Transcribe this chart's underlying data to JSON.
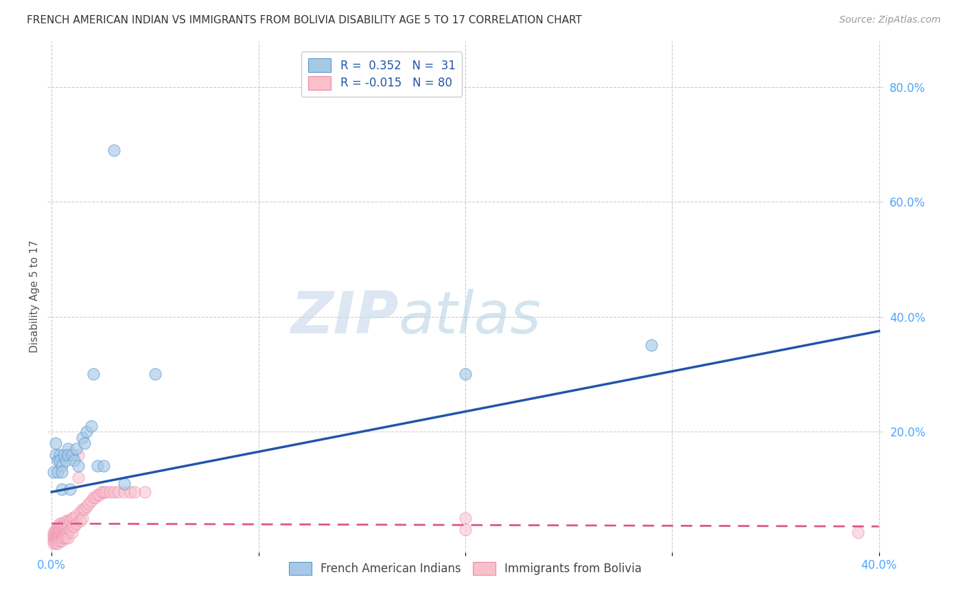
{
  "title": "FRENCH AMERICAN INDIAN VS IMMIGRANTS FROM BOLIVIA DISABILITY AGE 5 TO 17 CORRELATION CHART",
  "source": "Source: ZipAtlas.com",
  "xlabel": "",
  "ylabel": "Disability Age 5 to 17",
  "xlim": [
    -0.002,
    0.402
  ],
  "ylim": [
    -0.01,
    0.88
  ],
  "xticks_show": [
    0.0,
    0.4
  ],
  "xticks_grid": [
    0.0,
    0.1,
    0.2,
    0.3,
    0.4
  ],
  "yticks_right": [
    0.2,
    0.4,
    0.6,
    0.8
  ],
  "blue_R": 0.352,
  "blue_N": 31,
  "pink_R": -0.015,
  "pink_N": 80,
  "blue_color": "#a8c8e8",
  "blue_edge_color": "#5599cc",
  "blue_line_color": "#2255aa",
  "pink_color": "#f9c0cc",
  "pink_edge_color": "#e888aa",
  "pink_line_color": "#dd5588",
  "axis_tick_color": "#4da6ff",
  "title_color": "#333333",
  "background_color": "#ffffff",
  "grid_color": "#cccccc",
  "watermark_zip": "ZIP",
  "watermark_atlas": "atlas",
  "legend_label_blue": "French American Indians",
  "legend_label_pink": "Immigrants from Bolivia",
  "blue_scatter_x": [
    0.001,
    0.002,
    0.002,
    0.003,
    0.003,
    0.004,
    0.004,
    0.005,
    0.005,
    0.005,
    0.006,
    0.007,
    0.008,
    0.008,
    0.009,
    0.01,
    0.011,
    0.012,
    0.013,
    0.015,
    0.016,
    0.017,
    0.019,
    0.022,
    0.025,
    0.03,
    0.035,
    0.2,
    0.29,
    0.02,
    0.05
  ],
  "blue_scatter_y": [
    0.13,
    0.18,
    0.16,
    0.15,
    0.13,
    0.16,
    0.15,
    0.14,
    0.13,
    0.1,
    0.16,
    0.15,
    0.17,
    0.16,
    0.1,
    0.16,
    0.15,
    0.17,
    0.14,
    0.19,
    0.18,
    0.2,
    0.21,
    0.14,
    0.14,
    0.69,
    0.11,
    0.3,
    0.35,
    0.3,
    0.3
  ],
  "pink_scatter_x": [
    0.001,
    0.001,
    0.001,
    0.001,
    0.001,
    0.002,
    0.002,
    0.002,
    0.002,
    0.002,
    0.002,
    0.003,
    0.003,
    0.003,
    0.003,
    0.003,
    0.003,
    0.003,
    0.004,
    0.004,
    0.004,
    0.004,
    0.004,
    0.004,
    0.005,
    0.005,
    0.005,
    0.005,
    0.005,
    0.005,
    0.006,
    0.006,
    0.006,
    0.006,
    0.006,
    0.007,
    0.007,
    0.007,
    0.007,
    0.007,
    0.008,
    0.008,
    0.008,
    0.008,
    0.009,
    0.009,
    0.01,
    0.01,
    0.01,
    0.011,
    0.011,
    0.012,
    0.012,
    0.013,
    0.013,
    0.014,
    0.014,
    0.015,
    0.015,
    0.016,
    0.017,
    0.018,
    0.019,
    0.02,
    0.021,
    0.022,
    0.023,
    0.024,
    0.025,
    0.026,
    0.028,
    0.03,
    0.032,
    0.035,
    0.038,
    0.04,
    0.045,
    0.2,
    0.2,
    0.39
  ],
  "pink_scatter_y": [
    0.025,
    0.02,
    0.015,
    0.01,
    0.005,
    0.03,
    0.025,
    0.02,
    0.015,
    0.01,
    0.005,
    0.035,
    0.03,
    0.025,
    0.02,
    0.015,
    0.01,
    0.005,
    0.04,
    0.03,
    0.025,
    0.02,
    0.015,
    0.01,
    0.04,
    0.035,
    0.025,
    0.02,
    0.015,
    0.01,
    0.04,
    0.035,
    0.025,
    0.02,
    0.015,
    0.045,
    0.035,
    0.025,
    0.02,
    0.015,
    0.045,
    0.035,
    0.025,
    0.015,
    0.045,
    0.03,
    0.05,
    0.035,
    0.025,
    0.05,
    0.035,
    0.055,
    0.04,
    0.16,
    0.12,
    0.06,
    0.045,
    0.065,
    0.05,
    0.065,
    0.07,
    0.075,
    0.08,
    0.085,
    0.085,
    0.09,
    0.09,
    0.095,
    0.095,
    0.095,
    0.095,
    0.095,
    0.095,
    0.095,
    0.095,
    0.095,
    0.095,
    0.05,
    0.03,
    0.025
  ],
  "blue_trendline_x": [
    0.0,
    0.4
  ],
  "blue_trendline_y": [
    0.095,
    0.375
  ],
  "pink_trendline_x": [
    0.0,
    0.4
  ],
  "pink_trendline_y": [
    0.04,
    0.035
  ]
}
